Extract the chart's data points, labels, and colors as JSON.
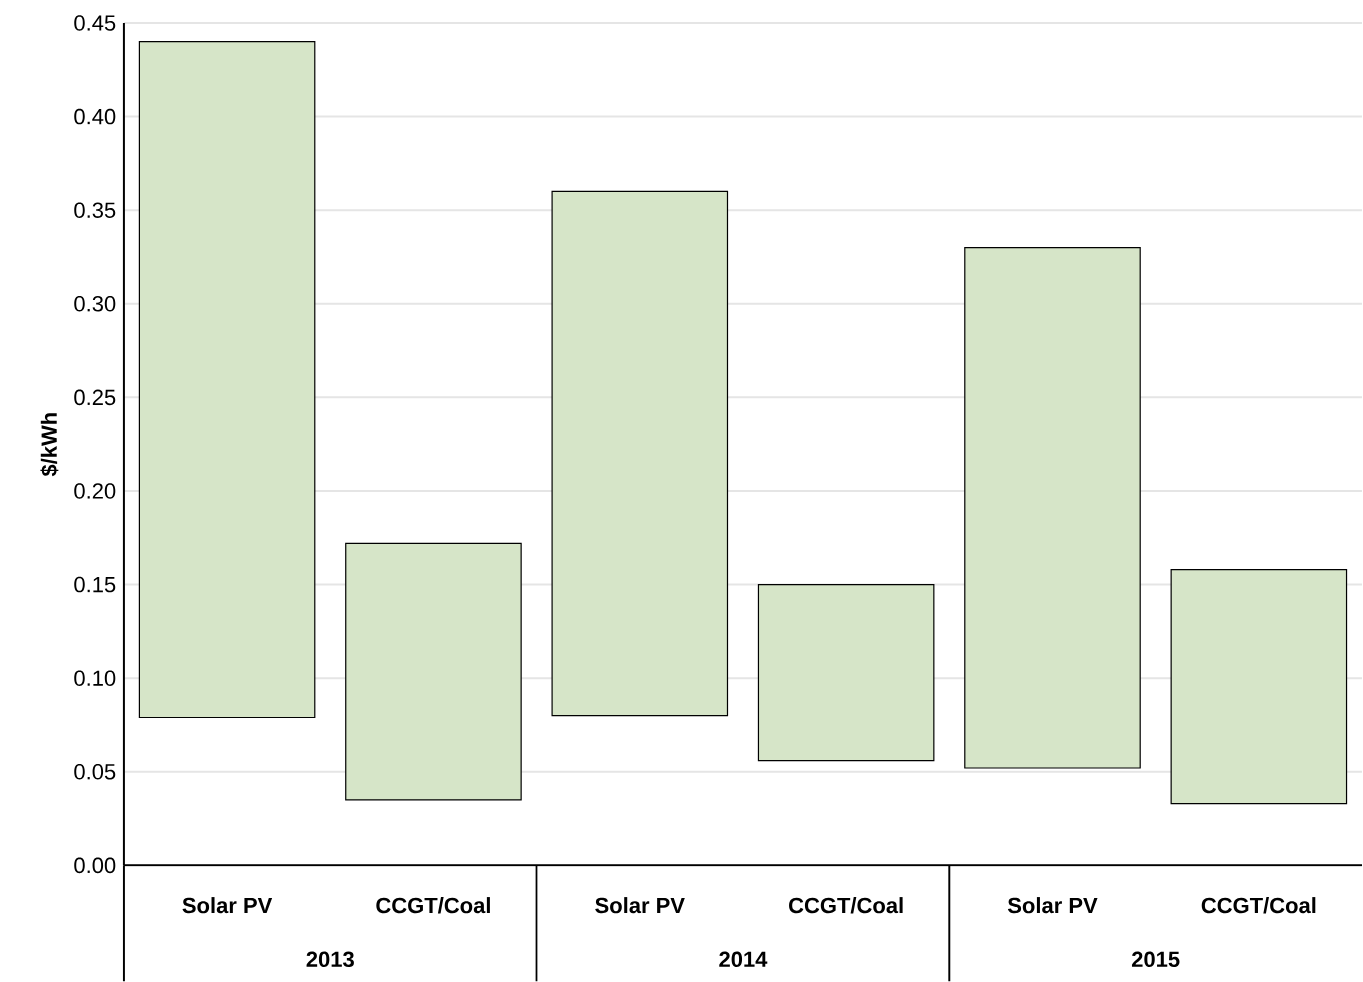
{
  "chart_data": {
    "type": "bar",
    "ylabel": "$/kWh",
    "categories": [
      "Solar PV",
      "CCGT/Coal",
      "Solar PV",
      "CCGT/Coal",
      "Solar PV",
      "CCGT/Coal"
    ],
    "base": [
      0.079,
      0.035,
      0.08,
      0.056,
      0.052,
      0.033
    ],
    "values": [
      0.361,
      0.137,
      0.28,
      0.094,
      0.278,
      0.125
    ],
    "color": "#d6e5c8",
    "ylim": [
      0,
      0.45
    ],
    "yticks": [
      {
        "value": 0,
        "label": "0.00"
      },
      {
        "value": 0.05,
        "label": "0.05"
      },
      {
        "value": 0.1,
        "label": "0.10"
      },
      {
        "value": 0.15,
        "label": "0.15"
      },
      {
        "value": 0.2,
        "label": "0.20"
      },
      {
        "value": 0.25,
        "label": "0.25"
      },
      {
        "value": 0.3,
        "label": "0.30"
      },
      {
        "value": 0.35,
        "label": "0.35"
      },
      {
        "value": 0.4,
        "label": "0.40"
      },
      {
        "value": 0.45,
        "label": "0.45"
      }
    ],
    "grid": "y",
    "annotations": [
      "2013",
      "2014",
      "2015"
    ]
  }
}
